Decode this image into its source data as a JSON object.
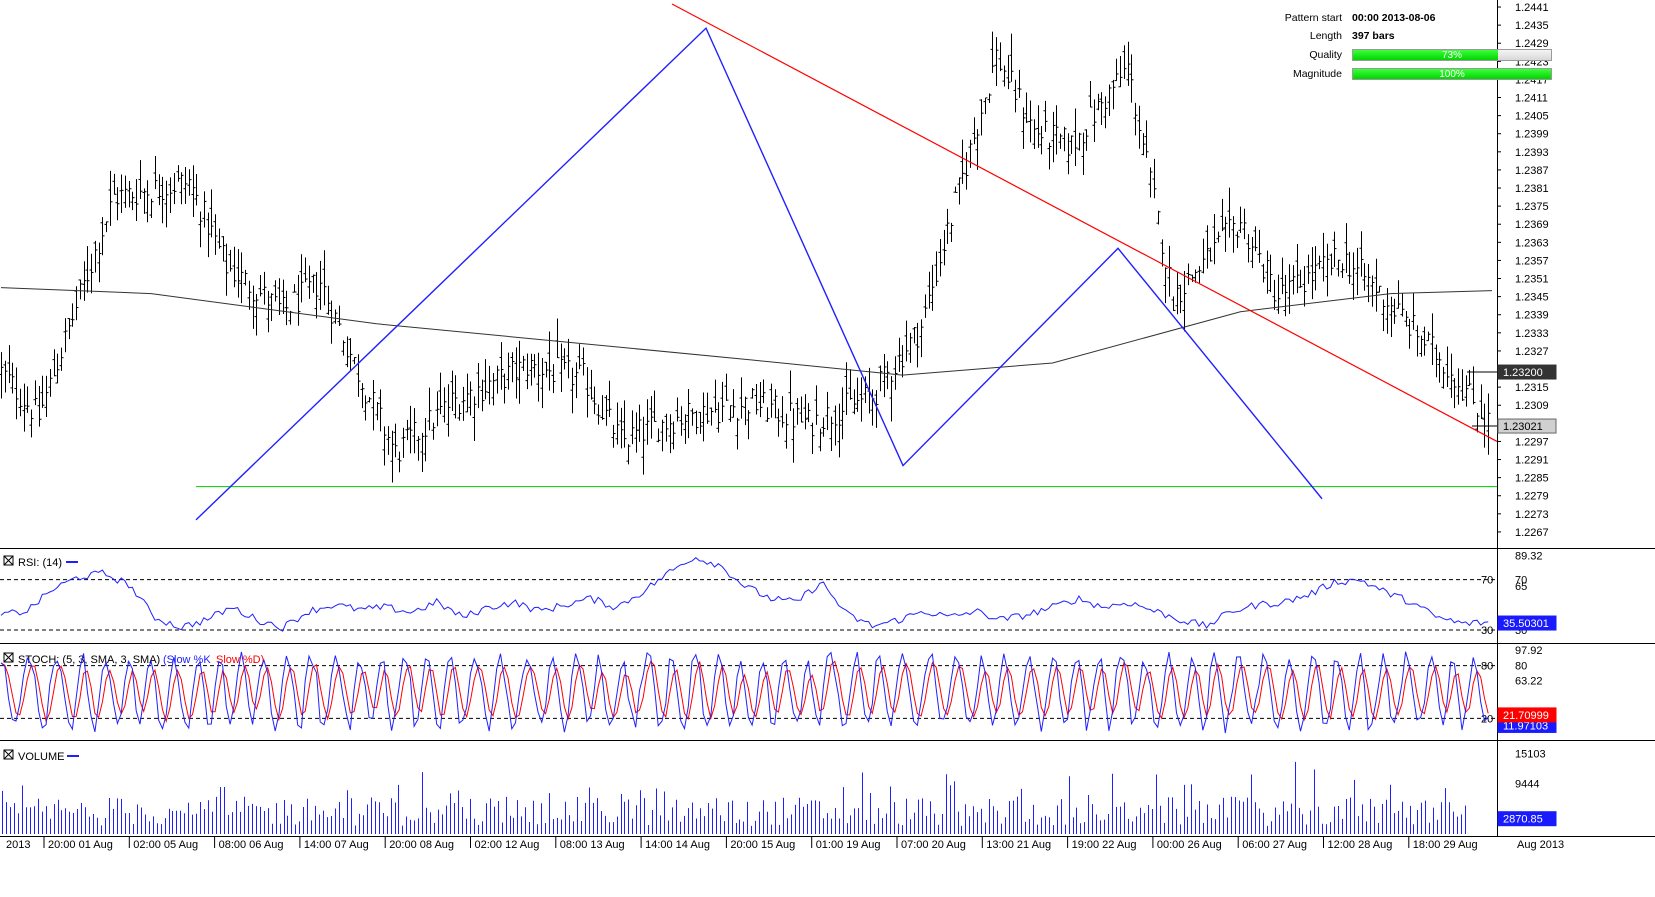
{
  "pattern_info": {
    "pattern_start_label": "Pattern start",
    "pattern_start_value": "00:00 2013-08-06",
    "length_label": "Length",
    "length_value": "397 bars",
    "quality_label": "Quality",
    "quality_value": "73%",
    "quality_fraction": 0.73,
    "magnitude_label": "Magnitude",
    "magnitude_value": "100%",
    "magnitude_fraction": 1.0
  },
  "x_axis": {
    "labels": [
      "2013",
      "20:00 01 Aug",
      "02:00 05 Aug",
      "08:00 06 Aug",
      "14:00 07 Aug",
      "20:00 08 Aug",
      "02:00 12 Aug",
      "08:00 13 Aug",
      "14:00 14 Aug",
      "20:00 15 Aug",
      "01:00 19 Aug",
      "07:00 20 Aug",
      "13:00 21 Aug",
      "19:00 22 Aug",
      "00:00 26 Aug",
      "06:00 27 Aug",
      "12:00 28 Aug",
      "18:00 29 Aug"
    ],
    "right_label": "Aug 2013"
  },
  "panels": {
    "rsi_title": "RSI: (14)",
    "stoch_title": "STOCH: (5, 3, SMA, 3, SMA)",
    "stoch_slow_k": "(Slow %K",
    "stoch_slow_d": "Slow %D)",
    "volume_title": "VOLUME"
  },
  "chart_data": [
    {
      "type": "candlestick",
      "name": "price",
      "y_ticks": [
        "1.2441",
        "1.2435",
        "1.2429",
        "1.2423",
        "1.2417",
        "1.2411",
        "1.2405",
        "1.2399",
        "1.2393",
        "1.2387",
        "1.2381",
        "1.2375",
        "1.2369",
        "1.2363",
        "1.2357",
        "1.2351",
        "1.2345",
        "1.2339",
        "1.2333",
        "1.2327",
        "1.2315",
        "1.2309",
        "1.2297",
        "1.2291",
        "1.2285",
        "1.2279",
        "1.2273",
        "1.2267"
      ],
      "ylim": [
        1.2263,
        1.2442
      ],
      "x_range": [
        0,
        397
      ],
      "price_anchors": [
        [
          0,
          1.232
        ],
        [
          10,
          1.2305
        ],
        [
          30,
          1.2378
        ],
        [
          50,
          1.2383
        ],
        [
          60,
          1.2355
        ],
        [
          75,
          1.234
        ],
        [
          85,
          1.235
        ],
        [
          95,
          1.232
        ],
        [
          105,
          1.2293
        ],
        [
          120,
          1.231
        ],
        [
          140,
          1.2322
        ],
        [
          155,
          1.2318
        ],
        [
          165,
          1.2297
        ],
        [
          180,
          1.2305
        ],
        [
          200,
          1.231
        ],
        [
          215,
          1.2303
        ],
        [
          232,
          1.2312
        ],
        [
          245,
          1.2335
        ],
        [
          265,
          1.2425
        ],
        [
          275,
          1.24
        ],
        [
          285,
          1.2395
        ],
        [
          300,
          1.2421
        ],
        [
          312,
          1.2345
        ],
        [
          330,
          1.237
        ],
        [
          340,
          1.2345
        ],
        [
          357,
          1.2358
        ],
        [
          365,
          1.2349
        ],
        [
          385,
          1.2322
        ],
        [
          397,
          1.2302
        ]
      ],
      "current_price_label": "1.23021",
      "ma_label": "1.23200",
      "moving_average": [
        [
          0,
          1.2348
        ],
        [
          40,
          1.2346
        ],
        [
          100,
          1.2336
        ],
        [
          200,
          1.2324
        ],
        [
          240,
          1.2319
        ],
        [
          280,
          1.2323
        ],
        [
          330,
          1.234
        ],
        [
          370,
          1.2346
        ],
        [
          397,
          1.2347
        ]
      ],
      "zigzag_blue": [
        [
          196,
          1.2271
        ],
        [
          706,
          1.2434
        ],
        [
          903,
          1.2289
        ],
        [
          1118,
          1.2361
        ],
        [
          1322,
          1.2278
        ]
      ],
      "resistance_red": [
        [
          672,
          1.2442
        ],
        [
          1497,
          1.2297
        ]
      ],
      "support_green": [
        [
          196,
          1.2282
        ],
        [
          1497,
          1.2282
        ]
      ]
    },
    {
      "type": "line",
      "name": "RSI",
      "y_ticks": [
        "89.32",
        "70",
        "65",
        "30"
      ],
      "levels": [
        70,
        30
      ],
      "ylim": [
        22,
        92
      ],
      "current_label": "35.50301",
      "values": [
        42,
        45,
        62,
        72,
        75,
        66,
        40,
        32,
        38,
        48,
        38,
        32,
        45,
        50,
        46,
        48,
        44,
        52,
        40,
        48,
        52,
        45,
        50,
        55,
        48,
        60,
        75,
        88,
        82,
        65,
        55,
        52,
        68,
        42,
        33,
        38,
        45,
        40,
        45,
        38,
        42,
        48,
        55,
        48,
        52,
        45,
        38,
        33,
        45,
        50,
        52,
        58,
        68,
        70,
        60,
        52,
        40,
        35,
        36
      ]
    },
    {
      "type": "line",
      "name": "STOCH",
      "series_names": [
        "Slow %K",
        "Slow %D"
      ],
      "y_ticks": [
        "97.92",
        "80",
        "63.22",
        "20"
      ],
      "levels": [
        80,
        20
      ],
      "ylim": [
        0,
        100
      ],
      "current_label": "21.70999",
      "current_label_2": "11.97103",
      "oscillations": 62
    },
    {
      "type": "bar",
      "name": "VOLUME",
      "y_ticks": [
        "15103",
        "9444"
      ],
      "ylim": [
        0,
        16500
      ],
      "current_label": "2870.85",
      "bar_count": 370
    }
  ]
}
